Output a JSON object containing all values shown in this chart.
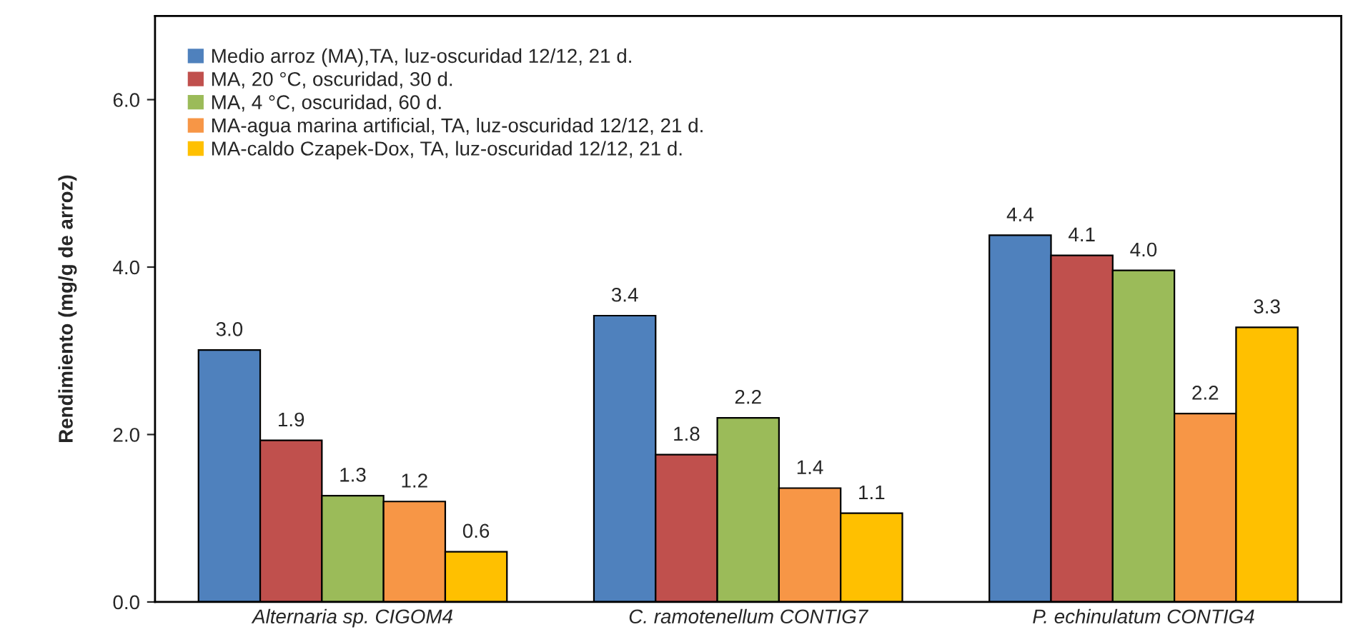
{
  "chart_data": {
    "type": "bar",
    "ylabel": "Rendimiento (mg/g de arroz)",
    "categories": [
      "Alternaria sp. CIGOM4",
      "C. ramotenellum CONTIG7",
      "P. echinulatum CONTIG4"
    ],
    "series": [
      {
        "name": "Medio arroz (MA),TA, luz-oscuridad 12/12, 21 d.",
        "color": "#4f81bd",
        "values": [
          3.01,
          3.42,
          4.38
        ],
        "value_labels": [
          "3.0",
          "3.4",
          "4.4"
        ]
      },
      {
        "name": "MA, 20 °C, oscuridad, 30 d.",
        "color": "#c0504d",
        "values": [
          1.93,
          1.76,
          4.14
        ],
        "value_labels": [
          "1.9",
          "1.8",
          "4.1"
        ]
      },
      {
        "name": "MA, 4 °C, oscuridad, 60 d.",
        "color": "#9bbb59",
        "values": [
          1.27,
          2.2,
          3.96
        ],
        "value_labels": [
          "1.3",
          "2.2",
          "4.0"
        ]
      },
      {
        "name": "MA-agua marina artificial, TA, luz-oscuridad 12/12, 21 d.",
        "color": "#f79646",
        "values": [
          1.2,
          1.36,
          2.25
        ],
        "value_labels": [
          "1.2",
          "1.4",
          "2.2"
        ]
      },
      {
        "name": "MA-caldo Czapek-Dox, TA, luz-oscuridad 12/12, 21 d.",
        "color": "#ffc000",
        "values": [
          0.6,
          1.06,
          3.28
        ],
        "value_labels": [
          "0.6",
          "1.1",
          "3.3"
        ]
      }
    ],
    "ylim": [
      0,
      7
    ],
    "yticks": [
      {
        "value": 0,
        "label": "0.0"
      },
      {
        "value": 2,
        "label": "2.0"
      },
      {
        "value": 4,
        "label": "4.0"
      },
      {
        "value": 6,
        "label": "6.0"
      }
    ],
    "legend": "top left",
    "grid": false
  }
}
